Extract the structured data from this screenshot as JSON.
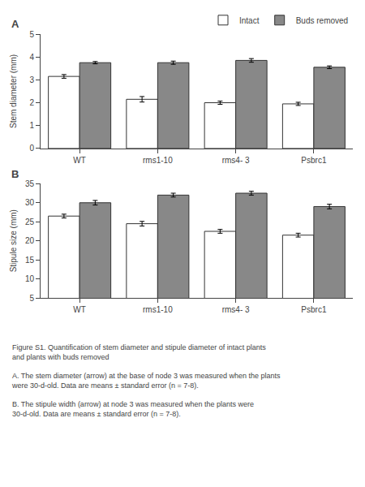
{
  "chart_data": [
    {
      "type": "bar",
      "title": "A",
      "ylabel": "Stem diameter (mm)",
      "categories": [
        "WT",
        "rms1-10",
        "rms4- 3",
        "Psbrc1"
      ],
      "series": [
        {
          "name": "Intact",
          "color": "#ffffff",
          "values": [
            3.15,
            2.15,
            2.0,
            1.95
          ],
          "errors": [
            0.08,
            0.12,
            0.07,
            0.07
          ]
        },
        {
          "name": "Buds removed",
          "color": "#888888",
          "values": [
            3.75,
            3.75,
            3.85,
            3.55
          ],
          "errors": [
            0.05,
            0.07,
            0.08,
            0.06
          ]
        }
      ],
      "ylim": [
        0,
        5
      ],
      "yticks": [
        0,
        1,
        2,
        3,
        4,
        5
      ],
      "grid": false,
      "legend": "upper right"
    },
    {
      "type": "bar",
      "title": "B",
      "ylabel": "Stipule size (mm)",
      "categories": [
        "WT",
        "rms1-10",
        "rms4- 3",
        "Psbrc1"
      ],
      "series": [
        {
          "name": "Intact",
          "color": "#ffffff",
          "values": [
            26.5,
            24.5,
            22.5,
            21.5
          ],
          "errors": [
            0.5,
            0.6,
            0.5,
            0.5
          ]
        },
        {
          "name": "Buds removed",
          "color": "#888888",
          "values": [
            30.0,
            32.0,
            32.5,
            29.0
          ],
          "errors": [
            0.6,
            0.5,
            0.5,
            0.6
          ]
        }
      ],
      "ylim": [
        5,
        35
      ],
      "yticks": [
        5,
        10,
        15,
        20,
        25,
        30,
        35
      ],
      "grid": false,
      "annotations": [
        "Figure S1. Quantification of stem diameter and stipule diameter of intact plants and plants with buds removed",
        "A. The stem diameter (arrow) at the base of node 3 was measured when the plants were 30-d-old. Data are means ± standard error (n = 7-8).",
        "B. The stipule width (arrow) at node 3 was measured when the plants were 30-d-old. Data are means ± standard error (n = 7-8)."
      ]
    }
  ]
}
